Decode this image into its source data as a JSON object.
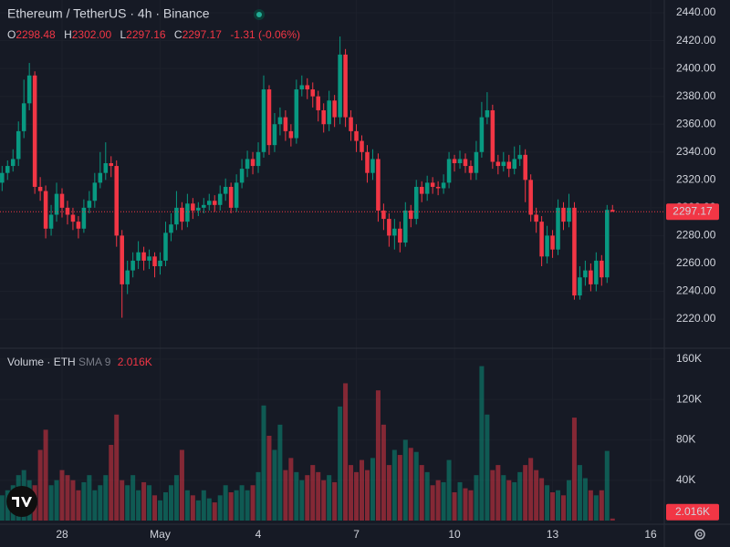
{
  "chart_data": {
    "type": "candlestick",
    "title": "Ethereum / TetherUS · 4h · Binance",
    "legend": {
      "keys": [
        "O",
        "H",
        "L",
        "C"
      ],
      "values": [
        "2298.48",
        "2302.00",
        "2297.16",
        "2297.17"
      ],
      "change": "-1.31 (-0.06%)"
    },
    "up_color": "#089981",
    "down_color": "#f23645",
    "open": [
      2318,
      2325,
      2330,
      2335,
      2355,
      2375,
      2395,
      2315,
      2312,
      2285,
      2295,
      2310,
      2300,
      2295,
      2290,
      2285,
      2300,
      2305,
      2318,
      2325,
      2332,
      2330,
      2280,
      2245,
      2255,
      2262,
      2268,
      2262,
      2265,
      2258,
      2262,
      2282,
      2288,
      2300,
      2290,
      2303,
      2298,
      2300,
      2302,
      2305,
      2302,
      2310,
      2315,
      2300,
      2318,
      2328,
      2335,
      2330,
      2340,
      2385,
      2345,
      2360,
      2365,
      2355,
      2350,
      2385,
      2388,
      2385,
      2380,
      2370,
      2360,
      2377,
      2365,
      2410,
      2365,
      2355,
      2348,
      2340,
      2325,
      2335,
      2298,
      2292,
      2280,
      2285,
      2275,
      2298,
      2292,
      2315,
      2310,
      2318,
      2315,
      2314,
      2318,
      2335,
      2332,
      2335,
      2330,
      2325,
      2340,
      2365,
      2370,
      2333,
      2330,
      2333,
      2328,
      2335,
      2338,
      2320,
      2295,
      2290,
      2265,
      2280,
      2270,
      2300,
      2290,
      2300,
      2237,
      2250,
      2255,
      2245,
      2262,
      2250,
      2298.48
    ],
    "high": [
      2330,
      2334,
      2342,
      2362,
      2392,
      2404,
      2398,
      2322,
      2316,
      2302,
      2318,
      2314,
      2305,
      2300,
      2294,
      2306,
      2312,
      2325,
      2340,
      2347,
      2337,
      2334,
      2284,
      2262,
      2268,
      2276,
      2272,
      2270,
      2268,
      2268,
      2290,
      2296,
      2312,
      2304,
      2310,
      2307,
      2304,
      2307,
      2310,
      2309,
      2316,
      2321,
      2318,
      2324,
      2335,
      2341,
      2340,
      2347,
      2395,
      2388,
      2368,
      2372,
      2370,
      2360,
      2392,
      2395,
      2393,
      2390,
      2384,
      2375,
      2384,
      2381,
      2423,
      2414,
      2370,
      2360,
      2352,
      2345,
      2342,
      2339,
      2303,
      2296,
      2292,
      2290,
      2304,
      2302,
      2320,
      2319,
      2323,
      2322,
      2319,
      2324,
      2340,
      2338,
      2341,
      2339,
      2334,
      2348,
      2376,
      2383,
      2374,
      2338,
      2340,
      2338,
      2344,
      2345,
      2342,
      2324,
      2300,
      2294,
      2287,
      2284,
      2306,
      2304,
      2310,
      2304,
      2258,
      2262,
      2260,
      2268,
      2266,
      2302,
      2302
    ],
    "low": [
      2312,
      2320,
      2326,
      2330,
      2350,
      2370,
      2310,
      2305,
      2278,
      2280,
      2290,
      2293,
      2288,
      2284,
      2278,
      2282,
      2296,
      2300,
      2314,
      2320,
      2322,
      2272,
      2221,
      2238,
      2250,
      2256,
      2255,
      2256,
      2250,
      2252,
      2258,
      2276,
      2284,
      2284,
      2286,
      2292,
      2294,
      2296,
      2298,
      2297,
      2298,
      2305,
      2296,
      2297,
      2314,
      2322,
      2324,
      2325,
      2336,
      2338,
      2340,
      2352,
      2348,
      2344,
      2346,
      2380,
      2378,
      2372,
      2362,
      2354,
      2355,
      2358,
      2360,
      2358,
      2348,
      2340,
      2334,
      2318,
      2320,
      2290,
      2284,
      2272,
      2270,
      2268,
      2272,
      2286,
      2288,
      2304,
      2305,
      2310,
      2309,
      2310,
      2314,
      2326,
      2328,
      2325,
      2320,
      2320,
      2336,
      2360,
      2328,
      2324,
      2326,
      2322,
      2324,
      2330,
      2304,
      2290,
      2282,
      2258,
      2260,
      2264,
      2266,
      2284,
      2286,
      2234,
      2234,
      2244,
      2240,
      2240,
      2244,
      2246,
      2297.16
    ],
    "close": [
      2325,
      2330,
      2335,
      2355,
      2375,
      2395,
      2315,
      2312,
      2285,
      2295,
      2310,
      2300,
      2295,
      2290,
      2285,
      2300,
      2305,
      2318,
      2325,
      2332,
      2330,
      2280,
      2245,
      2255,
      2262,
      2268,
      2262,
      2265,
      2258,
      2262,
      2282,
      2288,
      2300,
      2290,
      2303,
      2298,
      2300,
      2302,
      2305,
      2302,
      2310,
      2315,
      2300,
      2318,
      2328,
      2335,
      2330,
      2340,
      2385,
      2345,
      2360,
      2365,
      2355,
      2350,
      2385,
      2388,
      2385,
      2380,
      2370,
      2360,
      2377,
      2365,
      2410,
      2365,
      2355,
      2348,
      2340,
      2325,
      2335,
      2298,
      2292,
      2280,
      2285,
      2275,
      2298,
      2292,
      2315,
      2310,
      2318,
      2315,
      2314,
      2318,
      2335,
      2332,
      2335,
      2330,
      2325,
      2340,
      2365,
      2370,
      2333,
      2330,
      2333,
      2328,
      2335,
      2338,
      2320,
      2295,
      2290,
      2265,
      2280,
      2270,
      2300,
      2290,
      2300,
      2237,
      2250,
      2255,
      2245,
      2262,
      2250,
      2298.48,
      2297.17
    ],
    "xlim": [
      -0.385,
      121.5
    ],
    "xticks": [
      {
        "value": 11,
        "label": "28"
      },
      {
        "value": 29,
        "label": "May"
      },
      {
        "value": 47,
        "label": "4"
      },
      {
        "value": 65,
        "label": "7"
      },
      {
        "value": 83,
        "label": "10"
      },
      {
        "value": 101,
        "label": "13"
      },
      {
        "value": 119,
        "label": "16"
      }
    ],
    "ylim": [
      2200.4,
      2449.2
    ],
    "yticks": [
      {
        "value": 2220,
        "label": "2220.00"
      },
      {
        "value": 2240,
        "label": "2240.00"
      },
      {
        "value": 2260,
        "label": "2260.00"
      },
      {
        "value": 2280,
        "label": "2280.00"
      },
      {
        "value": 2300,
        "label": "2300.00"
      },
      {
        "value": 2320,
        "label": "2320.00"
      },
      {
        "value": 2340,
        "label": "2340.00"
      },
      {
        "value": 2360,
        "label": "2360.00"
      },
      {
        "value": 2380,
        "label": "2380.00"
      },
      {
        "value": 2400,
        "label": "2400.00"
      },
      {
        "value": 2420,
        "label": "2420.00"
      },
      {
        "value": 2440,
        "label": "2440.00"
      }
    ],
    "volume": {
      "title": "Volume · ETH",
      "indicator": "SMA 9",
      "current_label": "2.016K",
      "ylim": [
        0,
        168000
      ],
      "yticks": [
        {
          "value": 40000,
          "label": "40K"
        },
        {
          "value": 80000,
          "label": "80K"
        },
        {
          "value": 120000,
          "label": "120K"
        },
        {
          "value": 160000,
          "label": "160K"
        }
      ],
      "values": [
        25000,
        30000,
        35000,
        45000,
        50000,
        40000,
        35000,
        70000,
        90000,
        35000,
        40000,
        50000,
        45000,
        40000,
        30000,
        38000,
        45000,
        30000,
        35000,
        45000,
        75000,
        105000,
        40000,
        35000,
        45000,
        30000,
        38000,
        35000,
        25000,
        20000,
        28000,
        35000,
        45000,
        70000,
        30000,
        25000,
        20000,
        30000,
        22000,
        18000,
        25000,
        35000,
        28000,
        30000,
        35000,
        30000,
        35000,
        48000,
        114000,
        84000,
        70000,
        95000,
        50000,
        62000,
        48000,
        40000,
        45000,
        55000,
        48000,
        40000,
        45000,
        38000,
        113000,
        136000,
        55000,
        48000,
        60000,
        50000,
        62000,
        129000,
        95000,
        55000,
        70000,
        65000,
        80000,
        72000,
        68000,
        55000,
        48000,
        35000,
        40000,
        38000,
        60000,
        28000,
        38000,
        32000,
        30000,
        45000,
        153000,
        105000,
        50000,
        55000,
        45000,
        40000,
        38000,
        48000,
        55000,
        62000,
        50000,
        42000,
        35000,
        28000,
        30000,
        25000,
        40000,
        102000,
        55000,
        42000,
        30000,
        25000,
        30000,
        69000,
        2016
      ]
    }
  }
}
